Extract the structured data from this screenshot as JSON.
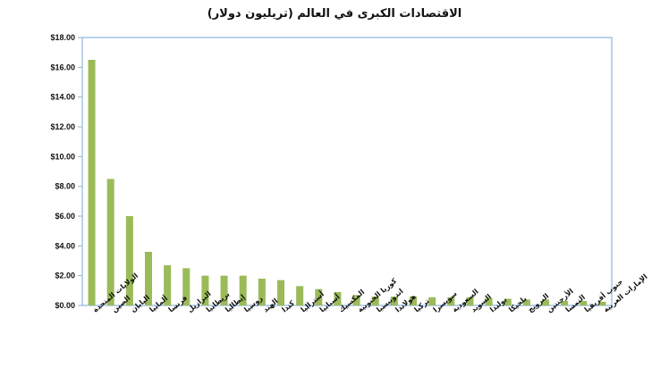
{
  "chart_data": {
    "type": "bar",
    "title": "الاقتصادات الكبرى في العالم (تريليون دولار)",
    "xlabel": "",
    "ylabel": "",
    "ylim": [
      0,
      18
    ],
    "yticks": [
      "$0.00",
      "$2.00",
      "$4.00",
      "$6.00",
      "$8.00",
      "$10.00",
      "$12.00",
      "$14.00",
      "$16.00",
      "$18.00"
    ],
    "ytick_values": [
      0,
      2,
      4,
      6,
      8,
      10,
      12,
      14,
      16,
      18
    ],
    "grid": false,
    "bar_color": "#9bbb59",
    "axis_color": "#8db3e2",
    "categories": [
      "الولايات المتحدة",
      "الصين",
      "اليابان",
      "ألمانيا",
      "فرنسا",
      "البرازيل",
      "بريطانيا",
      "إيطاليا",
      "روسيا",
      "الهند",
      "كندا",
      "أستراليا",
      "أسبانيا",
      "المكسيك",
      "كوريا الجنوبية",
      "اندونيسيا",
      "هولاندا",
      "تركيا",
      "سويسرا",
      "السعودية",
      "السويد",
      "بولندا",
      "بلجيكا",
      "النرويج",
      "الأرجنتين",
      "النمسا",
      "جنوب أفريقيا",
      "الإمارات العربية"
    ],
    "values": [
      16.5,
      8.5,
      6.0,
      3.6,
      2.7,
      2.5,
      2.0,
      2.0,
      2.0,
      1.8,
      1.7,
      1.3,
      1.1,
      0.9,
      0.7,
      0.6,
      0.6,
      0.6,
      0.55,
      0.55,
      0.55,
      0.5,
      0.45,
      0.4,
      0.4,
      0.3,
      0.3,
      0.25
    ]
  }
}
